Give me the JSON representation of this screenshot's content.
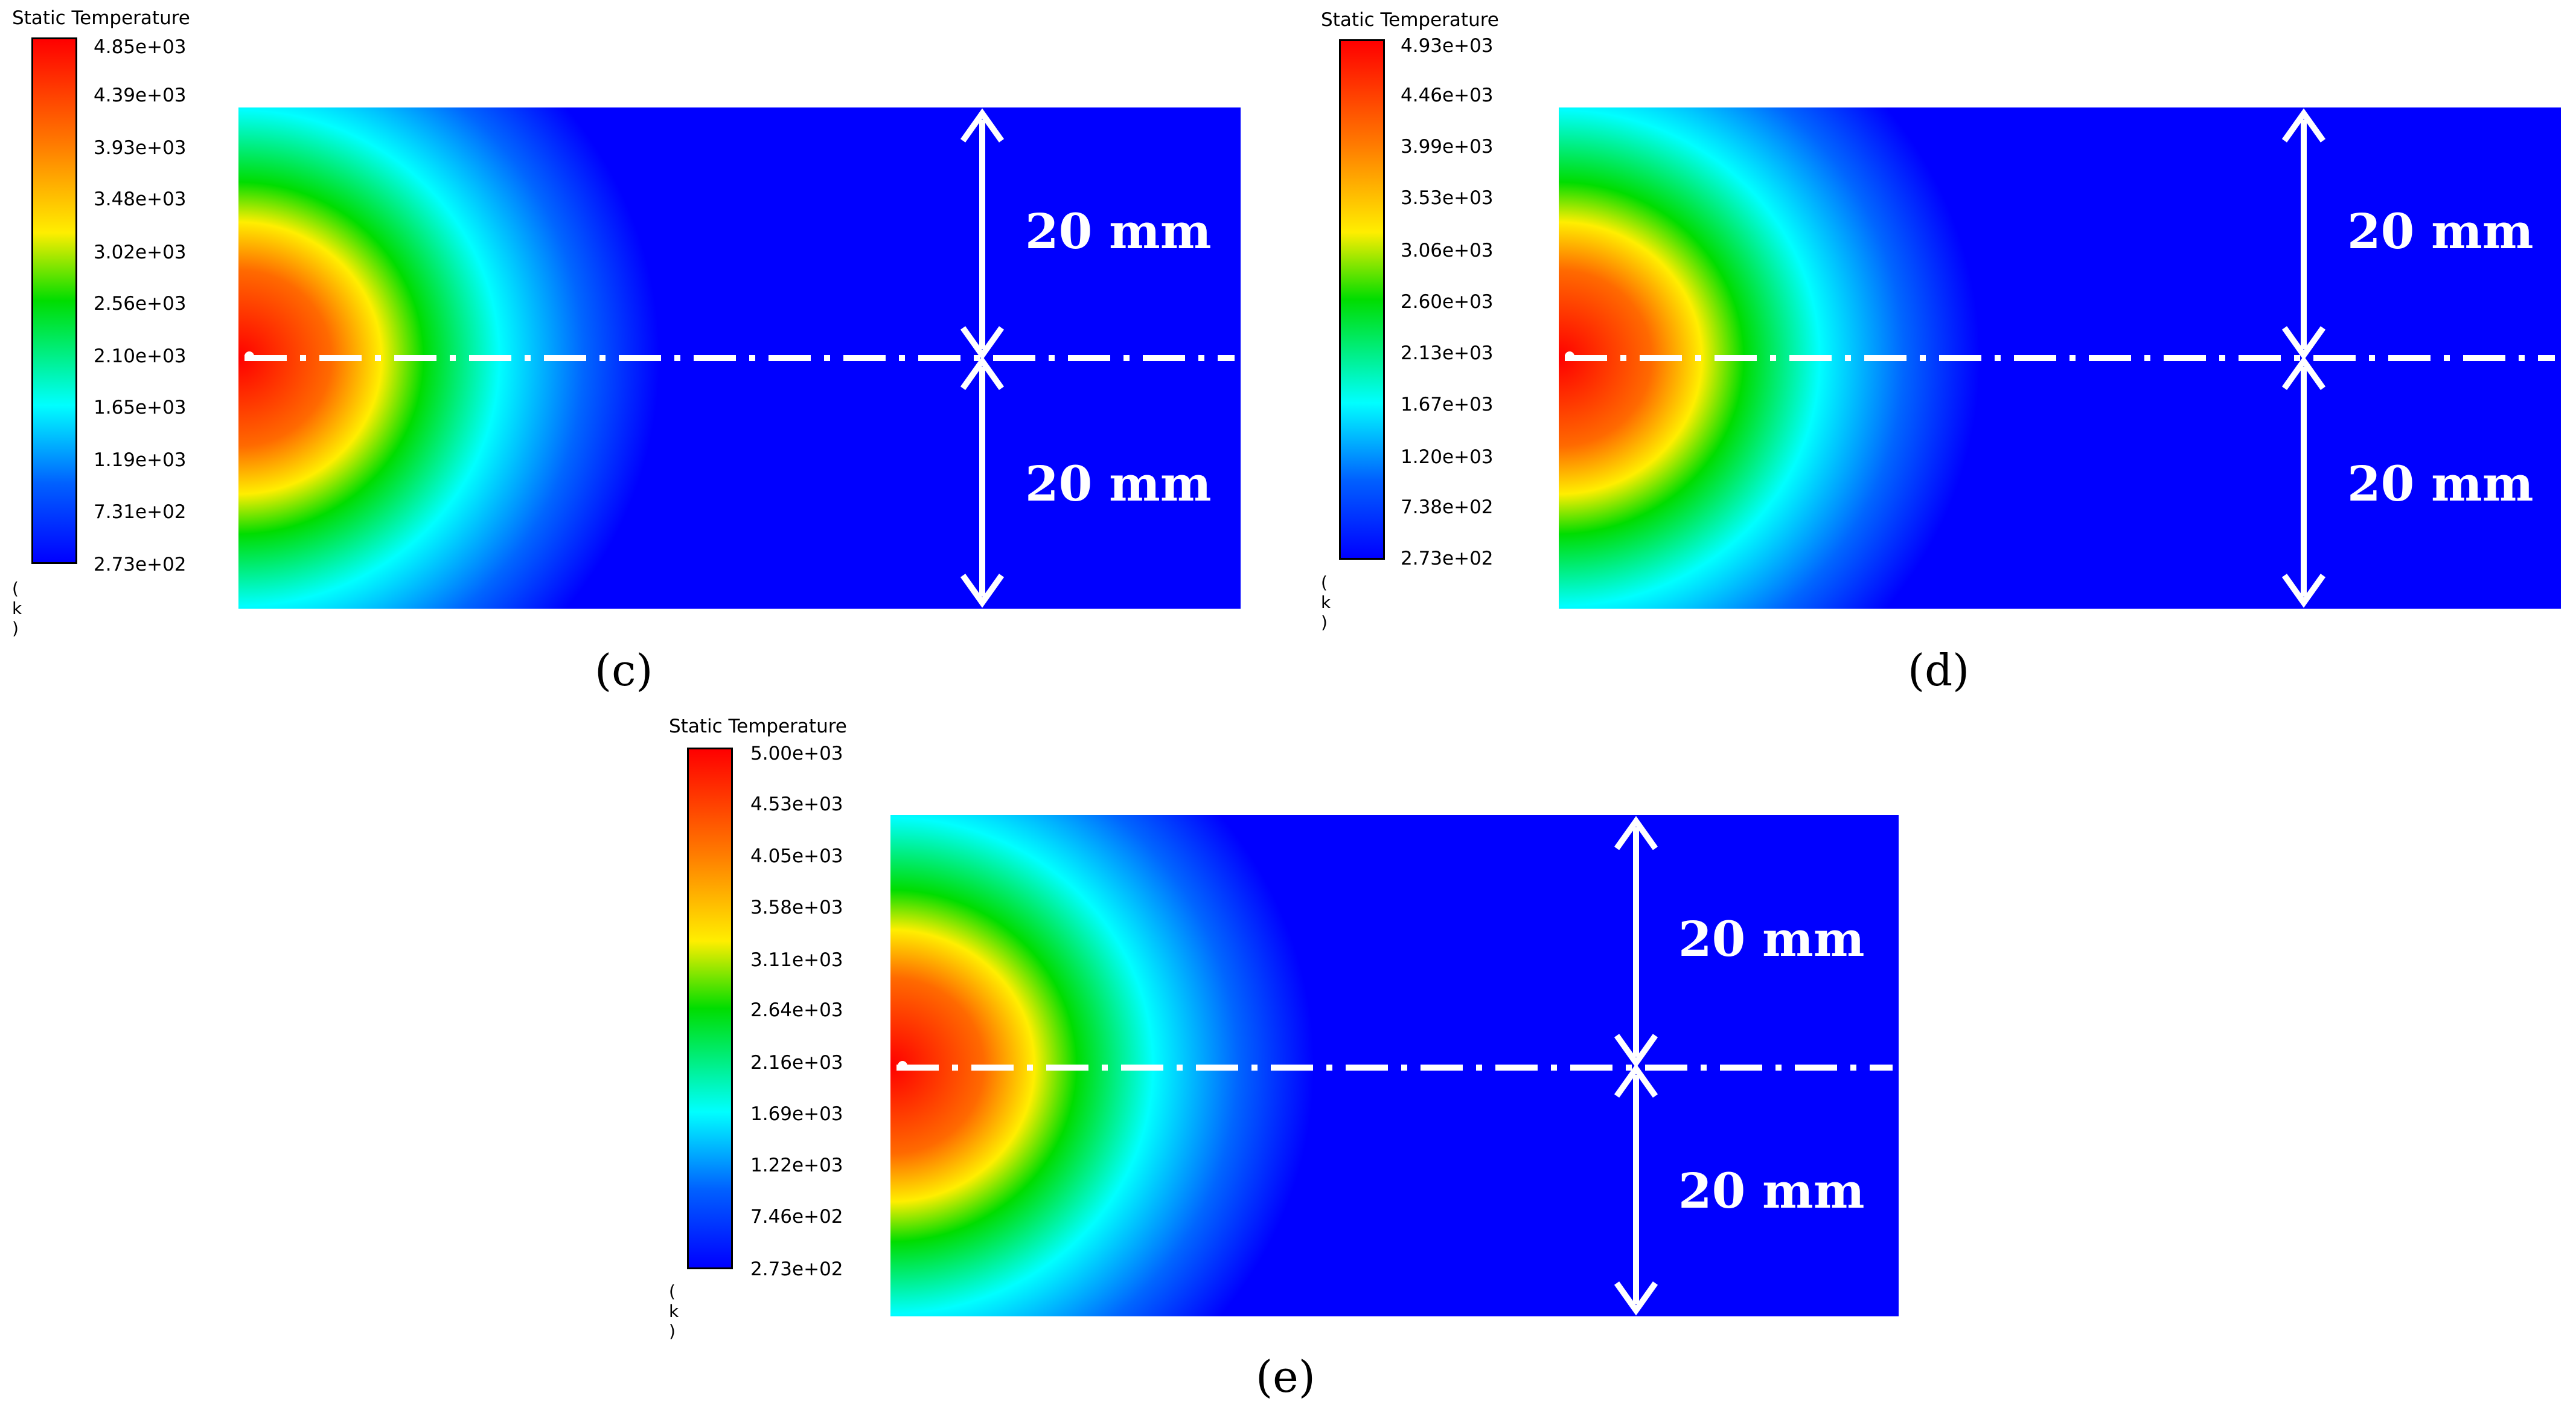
{
  "figure": {
    "panels": [
      {
        "id": "c",
        "caption": "(c)",
        "legend_title": "Static Temperature",
        "unit": "( k )",
        "ticks": [
          "4.85e+03",
          "4.39e+03",
          "3.93e+03",
          "3.48e+03",
          "3.02e+03",
          "2.56e+03",
          "2.10e+03",
          "1.65e+03",
          "1.19e+03",
          "7.31e+02",
          "2.73e+02"
        ],
        "dim_top": "20 mm",
        "dim_bottom": "20 mm"
      },
      {
        "id": "d",
        "caption": "(d)",
        "legend_title": "Static Temperature",
        "unit": "( k )",
        "ticks": [
          "4.93e+03",
          "4.46e+03",
          "3.99e+03",
          "3.53e+03",
          "3.06e+03",
          "2.60e+03",
          "2.13e+03",
          "1.67e+03",
          "1.20e+03",
          "7.38e+02",
          "2.73e+02"
        ],
        "dim_top": "20 mm",
        "dim_bottom": "20 mm"
      },
      {
        "id": "e",
        "caption": "(e)",
        "legend_title": "Static Temperature",
        "unit": "( k )",
        "ticks": [
          "5.00e+03",
          "4.53e+03",
          "4.05e+03",
          "3.58e+03",
          "3.11e+03",
          "2.64e+03",
          "2.16e+03",
          "1.69e+03",
          "1.22e+03",
          "7.46e+02",
          "2.73e+02"
        ],
        "dim_top": "20 mm",
        "dim_bottom": "20 mm"
      }
    ],
    "colors": {
      "field_background": "#0000ff",
      "annotation": "#ffffff",
      "hot": "#ff0000",
      "cold": "#0000ff"
    }
  }
}
